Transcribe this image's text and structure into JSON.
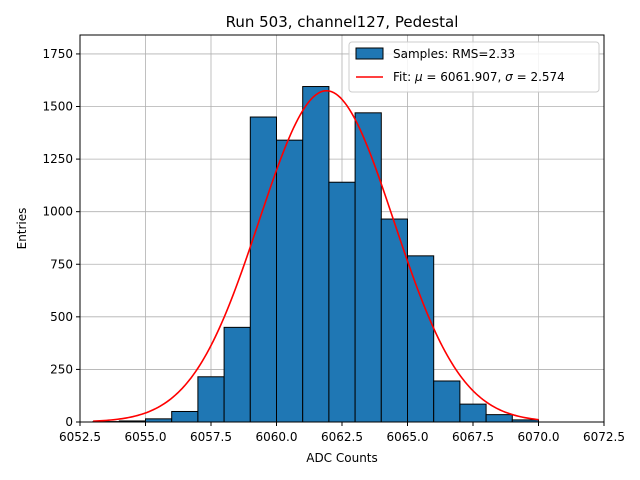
{
  "chart_data": {
    "type": "histogram",
    "title": "Run 503, channel127, Pedestal",
    "xlabel": "ADC Counts",
    "ylabel": "Entries",
    "xlim": [
      6052.5,
      6072.5
    ],
    "ylim": [
      0,
      1840
    ],
    "xticks": [
      6052.5,
      6055.0,
      6057.5,
      6060.0,
      6062.5,
      6065.0,
      6067.5,
      6070.0,
      6072.5
    ],
    "xtick_labels": [
      "6052.5",
      "6055.0",
      "6057.5",
      "6060.0",
      "6062.5",
      "6065.0",
      "6067.5",
      "6070.0",
      "6072.5"
    ],
    "yticks": [
      0,
      250,
      500,
      750,
      1000,
      1250,
      1500,
      1750
    ],
    "ytick_labels": [
      "0",
      "250",
      "500",
      "750",
      "1000",
      "1250",
      "1500",
      "1750"
    ],
    "grid": true,
    "legend_position": "top-right",
    "bins": [
      {
        "left": 6053,
        "right": 6054,
        "value": 2
      },
      {
        "left": 6054,
        "right": 6055,
        "value": 5
      },
      {
        "left": 6055,
        "right": 6056,
        "value": 15
      },
      {
        "left": 6056,
        "right": 6057,
        "value": 50
      },
      {
        "left": 6057,
        "right": 6058,
        "value": 215
      },
      {
        "left": 6058,
        "right": 6059,
        "value": 450
      },
      {
        "left": 6059,
        "right": 6060,
        "value": 1450
      },
      {
        "left": 6060,
        "right": 6061,
        "value": 1340
      },
      {
        "left": 6061,
        "right": 6062,
        "value": 1595
      },
      {
        "left": 6062,
        "right": 6063,
        "value": 1140
      },
      {
        "left": 6063,
        "right": 6064,
        "value": 1470
      },
      {
        "left": 6064,
        "right": 6065,
        "value": 965
      },
      {
        "left": 6065,
        "right": 6066,
        "value": 790
      },
      {
        "left": 6066,
        "right": 6067,
        "value": 195
      },
      {
        "left": 6067,
        "right": 6068,
        "value": 85
      },
      {
        "left": 6068,
        "right": 6069,
        "value": 35
      },
      {
        "left": 6069,
        "right": 6070,
        "value": 10
      }
    ],
    "fit": {
      "mu": 6061.907,
      "sigma": 2.574,
      "amplitude": 1575,
      "x_range": [
        6053,
        6070
      ]
    },
    "legend": {
      "samples_label": "Samples: RMS=2.33",
      "fit_label_prefix": "Fit: ",
      "mu_symbol": "μ",
      "fit_mu_text": " = 6061.907, ",
      "sigma_symbol": "σ",
      "fit_sigma_text": " = 2.574"
    },
    "colors": {
      "bar": "#1f77b4",
      "fit": "#ff0000"
    }
  }
}
